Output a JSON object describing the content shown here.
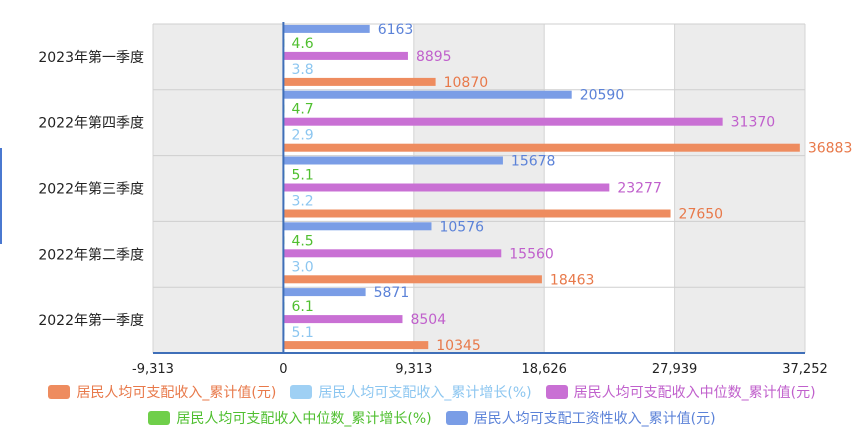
{
  "chart_data": {
    "type": "bar",
    "orientation": "horizontal",
    "categories": [
      "2023年第一季度",
      "2022年第四季度",
      "2022年第三季度",
      "2022年第二季度",
      "2022年第一季度"
    ],
    "series": [
      {
        "name": "居民人均可支配工资性收入_累计值(元)",
        "color": "#7a9de6",
        "label_color": "#5b82d8",
        "values": [
          6163,
          20590,
          15678,
          10576,
          5871
        ],
        "labels": [
          "6163",
          "20590",
          "15678",
          "10576",
          "5871"
        ]
      },
      {
        "name": "居民人均可支配收入中位数_累计增长(%)",
        "color": "#6fcf4a",
        "label_color": "#4fbf2f",
        "values": [
          4.6,
          4.7,
          5.1,
          4.5,
          6.1
        ],
        "labels": [
          "4.6",
          "4.7",
          "5.1",
          "4.5",
          "6.1"
        ]
      },
      {
        "name": "居民人均可支配收入中位数_累计值(元)",
        "color": "#c970d4",
        "label_color": "#c060cc",
        "values": [
          8895,
          31370,
          23277,
          15560,
          8504
        ],
        "labels": [
          "8895",
          "31370",
          "23277",
          "15560",
          "8504"
        ]
      },
      {
        "name": "居民人均可支配收入_累计增长(%)",
        "color": "#9fd0f4",
        "label_color": "#8cc6f0",
        "values": [
          3.8,
          2.9,
          3.2,
          3.0,
          5.1
        ],
        "labels": [
          "3.8",
          "2.9",
          "3.2",
          "3.0",
          "5.1"
        ]
      },
      {
        "name": "居民人均可支配收入_累计值(元)",
        "color": "#ee8c5f",
        "label_color": "#e8794a",
        "values": [
          10870,
          36883,
          27650,
          18463,
          10345
        ],
        "labels": [
          "10870",
          "36883",
          "27650",
          "18463",
          "10345"
        ]
      }
    ],
    "xlim": [
      -9313,
      37252
    ],
    "xticks": [
      -9313,
      0,
      9313,
      18626,
      27939,
      37252
    ],
    "xtick_labels": [
      "-9,313",
      "0",
      "9,313",
      "18,626",
      "27,939",
      "37,252"
    ],
    "grid": true,
    "legend_position": "bottom",
    "legend_rows": [
      [
        "居民人均可支配收入_累计值(元)",
        "居民人均可支配收入_累计增长(%)",
        "居民人均可支配收入中位数_累计值(元)"
      ],
      [
        "居民人均可支配收入中位数_累计增长(%)",
        "居民人均可支配工资性收入_累计值(元)"
      ]
    ]
  }
}
